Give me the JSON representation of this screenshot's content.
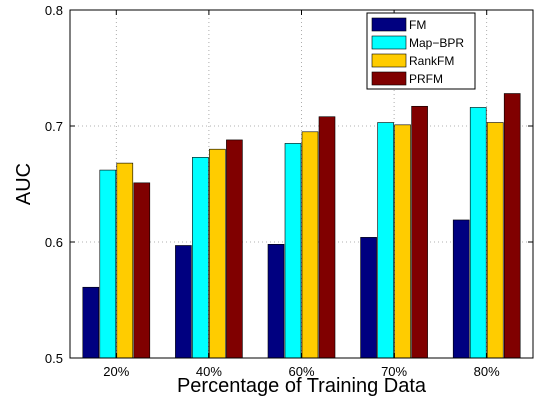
{
  "chart_data": {
    "type": "bar",
    "title": "",
    "xlabel": "Percentage of Training Data",
    "ylabel": "AUC",
    "categories": [
      "20%",
      "40%",
      "60%",
      "70%",
      "80%"
    ],
    "ylim": [
      0.5,
      0.8
    ],
    "yticks": [
      0.5,
      0.6,
      0.7,
      0.8
    ],
    "grid": true,
    "legend_position": "top-right",
    "series": [
      {
        "name": "FM",
        "color": "#000080",
        "values": [
          0.561,
          0.597,
          0.598,
          0.604,
          0.619
        ]
      },
      {
        "name": "Map−BPR",
        "color": "#00ffff",
        "values": [
          0.662,
          0.673,
          0.685,
          0.703,
          0.716
        ]
      },
      {
        "name": "RankFM",
        "color": "#ffcc00",
        "values": [
          0.668,
          0.68,
          0.695,
          0.701,
          0.703
        ]
      },
      {
        "name": "PRFM",
        "color": "#800000",
        "values": [
          0.651,
          0.688,
          0.708,
          0.717,
          0.728
        ]
      }
    ]
  }
}
